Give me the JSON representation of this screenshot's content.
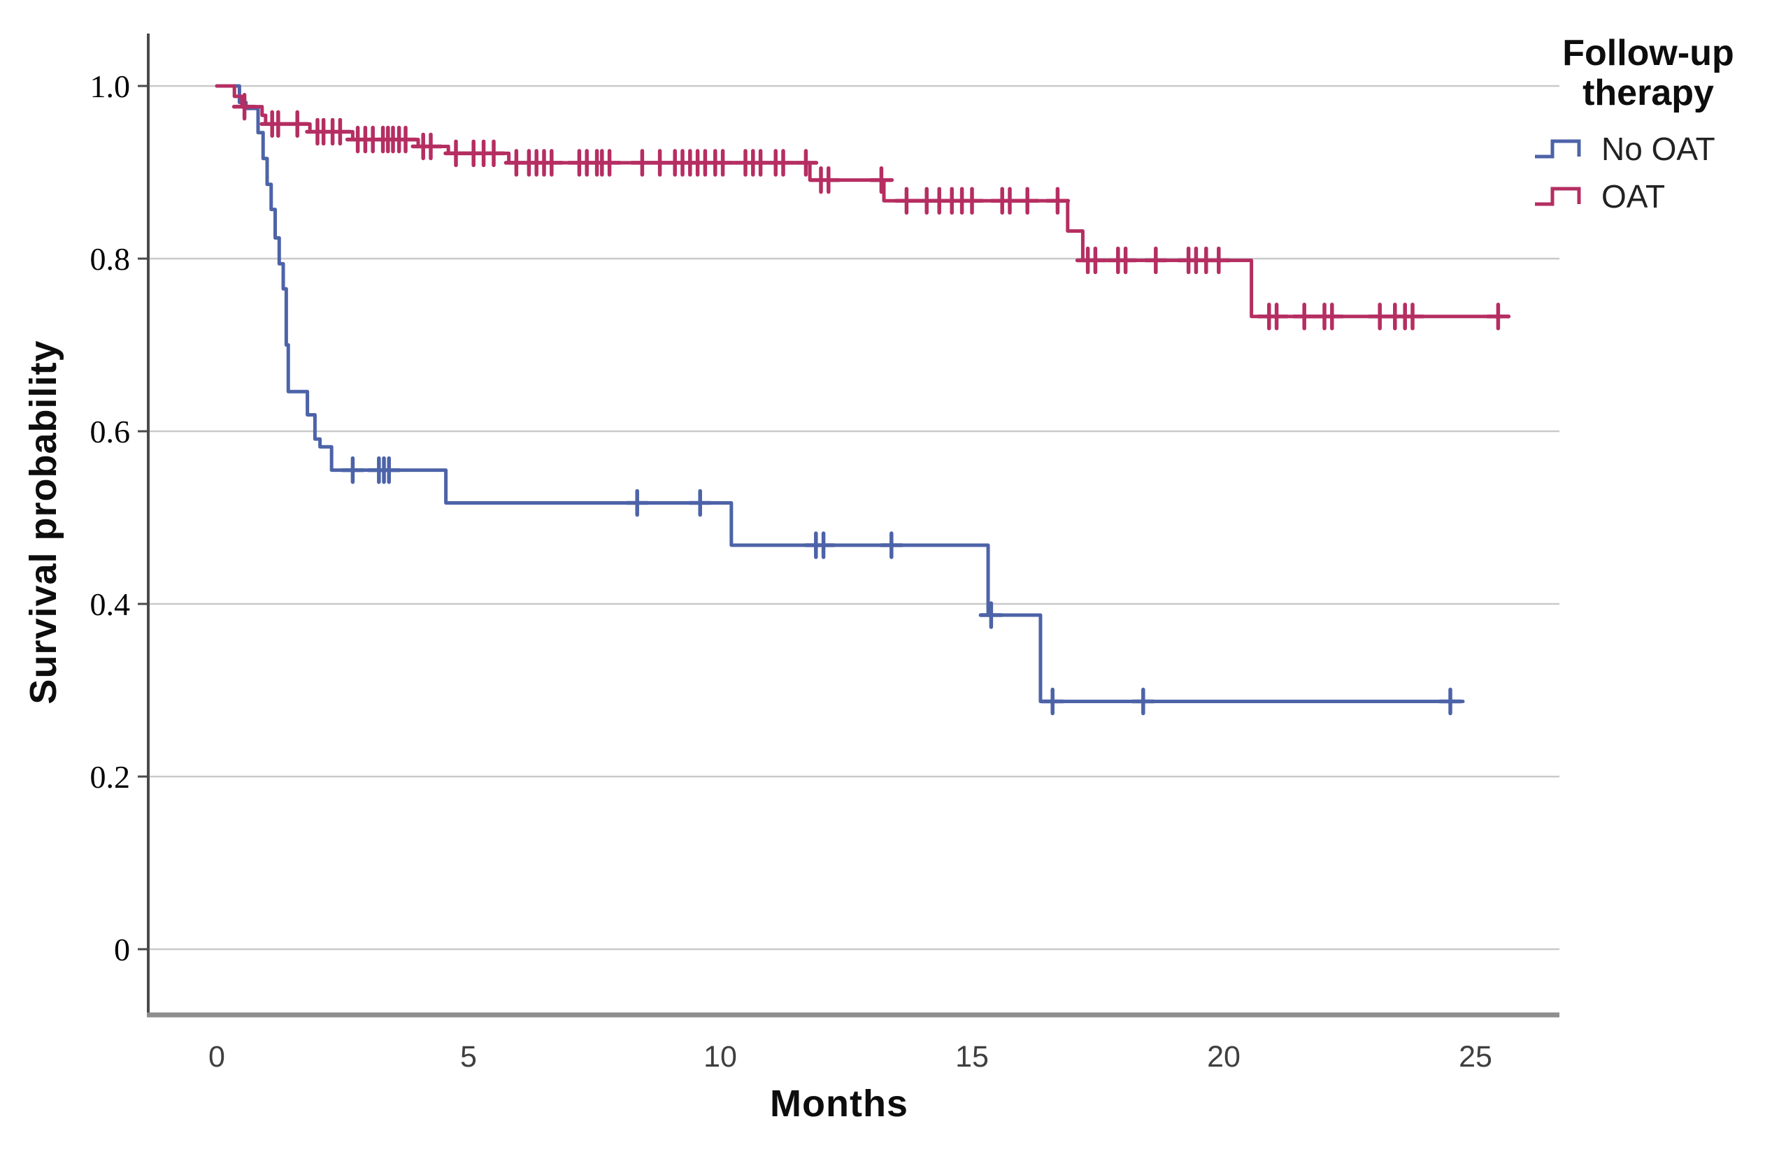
{
  "legend": {
    "title": "Follow-up therapy",
    "items": [
      {
        "label": "No OAT",
        "color": "#4d63a8"
      },
      {
        "label": "OAT",
        "color": "#b52e62"
      }
    ]
  },
  "chart_data": {
    "type": "line",
    "variant": "kaplan_meier_step_survival",
    "title": "",
    "xlabel": "Months",
    "ylabel": "Survival probability",
    "legend_position": "right-top",
    "grid": "horizontal",
    "xlim": [
      -1.35,
      26.7
    ],
    "ylim": [
      -0.076,
      1.06
    ],
    "x_ticks": {
      "values": [
        0,
        5,
        10,
        15,
        20,
        25
      ],
      "labels": [
        "0",
        "5",
        "10",
        "15",
        "20",
        "25"
      ]
    },
    "y_ticks": {
      "values": [
        1.0,
        0.8,
        0.6,
        0.4,
        0.2,
        0.0
      ],
      "labels": [
        "1.0",
        "0.8",
        "0.6",
        "0.4",
        "0.2",
        "0"
      ]
    },
    "colors": {
      "grid": "#c9c9c9",
      "y_axis_line": "#4a4a4a",
      "x_axis_line": "#8e8e8e",
      "tick_mark": "#4a4a4a"
    },
    "series": [
      {
        "name": "No OAT",
        "color": "#4d63a8",
        "steps": [
          [
            0.0,
            1.0
          ],
          [
            0.45,
            0.981
          ],
          [
            0.58,
            0.974
          ],
          [
            0.82,
            0.946
          ],
          [
            0.92,
            0.916
          ],
          [
            1.0,
            0.886
          ],
          [
            1.08,
            0.857
          ],
          [
            1.16,
            0.824
          ],
          [
            1.24,
            0.794
          ],
          [
            1.32,
            0.765
          ],
          [
            1.38,
            0.7
          ],
          [
            1.42,
            0.646
          ],
          [
            1.8,
            0.619
          ],
          [
            1.95,
            0.591
          ],
          [
            2.05,
            0.582
          ],
          [
            2.28,
            0.555
          ],
          [
            4.55,
            0.517
          ],
          [
            10.22,
            0.468
          ],
          [
            15.32,
            0.387
          ],
          [
            16.36,
            0.287
          ]
        ],
        "end": 24.75,
        "censors": [
          [
            2.7,
            0.555
          ],
          [
            3.22,
            0.555
          ],
          [
            3.32,
            0.555
          ],
          [
            3.42,
            0.555
          ],
          [
            8.35,
            0.517
          ],
          [
            9.6,
            0.517
          ],
          [
            11.9,
            0.468
          ],
          [
            12.05,
            0.468
          ],
          [
            13.4,
            0.468
          ],
          [
            15.38,
            0.387
          ],
          [
            16.6,
            0.287
          ],
          [
            18.4,
            0.287
          ],
          [
            24.5,
            0.287
          ]
        ]
      },
      {
        "name": "OAT",
        "color": "#b52e62",
        "steps": [
          [
            0.0,
            1.0
          ],
          [
            0.35,
            0.988
          ],
          [
            0.5,
            0.976
          ],
          [
            0.9,
            0.966
          ],
          [
            0.97,
            0.956
          ],
          [
            1.85,
            0.947
          ],
          [
            2.7,
            0.938
          ],
          [
            4.0,
            0.93
          ],
          [
            4.6,
            0.922
          ],
          [
            5.8,
            0.911
          ],
          [
            11.78,
            0.891
          ],
          [
            13.25,
            0.867
          ],
          [
            16.9,
            0.832
          ],
          [
            17.2,
            0.798
          ],
          [
            20.55,
            0.733
          ]
        ],
        "end": 25.6,
        "censors": [
          [
            0.55,
            0.976
          ],
          [
            1.1,
            0.956
          ],
          [
            1.22,
            0.956
          ],
          [
            1.6,
            0.956
          ],
          [
            2.0,
            0.947
          ],
          [
            2.12,
            0.947
          ],
          [
            2.3,
            0.947
          ],
          [
            2.45,
            0.947
          ],
          [
            2.8,
            0.938
          ],
          [
            2.95,
            0.938
          ],
          [
            3.1,
            0.938
          ],
          [
            3.3,
            0.938
          ],
          [
            3.4,
            0.938
          ],
          [
            3.5,
            0.938
          ],
          [
            3.62,
            0.938
          ],
          [
            3.75,
            0.938
          ],
          [
            4.1,
            0.93
          ],
          [
            4.25,
            0.93
          ],
          [
            4.75,
            0.922
          ],
          [
            5.1,
            0.922
          ],
          [
            5.3,
            0.922
          ],
          [
            5.5,
            0.922
          ],
          [
            5.95,
            0.911
          ],
          [
            6.2,
            0.911
          ],
          [
            6.35,
            0.911
          ],
          [
            6.5,
            0.911
          ],
          [
            6.65,
            0.911
          ],
          [
            7.2,
            0.911
          ],
          [
            7.35,
            0.911
          ],
          [
            7.55,
            0.911
          ],
          [
            7.65,
            0.911
          ],
          [
            7.8,
            0.911
          ],
          [
            8.45,
            0.911
          ],
          [
            8.8,
            0.911
          ],
          [
            9.1,
            0.911
          ],
          [
            9.25,
            0.911
          ],
          [
            9.4,
            0.911
          ],
          [
            9.55,
            0.911
          ],
          [
            9.7,
            0.911
          ],
          [
            9.9,
            0.911
          ],
          [
            10.05,
            0.911
          ],
          [
            10.5,
            0.911
          ],
          [
            10.65,
            0.911
          ],
          [
            10.8,
            0.911
          ],
          [
            11.1,
            0.911
          ],
          [
            11.25,
            0.911
          ],
          [
            11.7,
            0.911
          ],
          [
            12.0,
            0.891
          ],
          [
            12.15,
            0.891
          ],
          [
            13.2,
            0.891
          ],
          [
            13.7,
            0.867
          ],
          [
            14.1,
            0.867
          ],
          [
            14.35,
            0.867
          ],
          [
            14.6,
            0.867
          ],
          [
            14.8,
            0.867
          ],
          [
            15.0,
            0.867
          ],
          [
            15.6,
            0.867
          ],
          [
            15.75,
            0.867
          ],
          [
            16.1,
            0.867
          ],
          [
            16.7,
            0.867
          ],
          [
            17.3,
            0.798
          ],
          [
            17.45,
            0.798
          ],
          [
            17.9,
            0.798
          ],
          [
            18.05,
            0.798
          ],
          [
            18.65,
            0.798
          ],
          [
            19.3,
            0.798
          ],
          [
            19.45,
            0.798
          ],
          [
            19.65,
            0.798
          ],
          [
            19.9,
            0.798
          ],
          [
            20.9,
            0.733
          ],
          [
            21.05,
            0.733
          ],
          [
            21.6,
            0.733
          ],
          [
            22.0,
            0.733
          ],
          [
            22.15,
            0.733
          ],
          [
            23.1,
            0.733
          ],
          [
            23.4,
            0.733
          ],
          [
            23.6,
            0.733
          ],
          [
            23.75,
            0.733
          ],
          [
            25.45,
            0.733
          ]
        ]
      }
    ]
  }
}
